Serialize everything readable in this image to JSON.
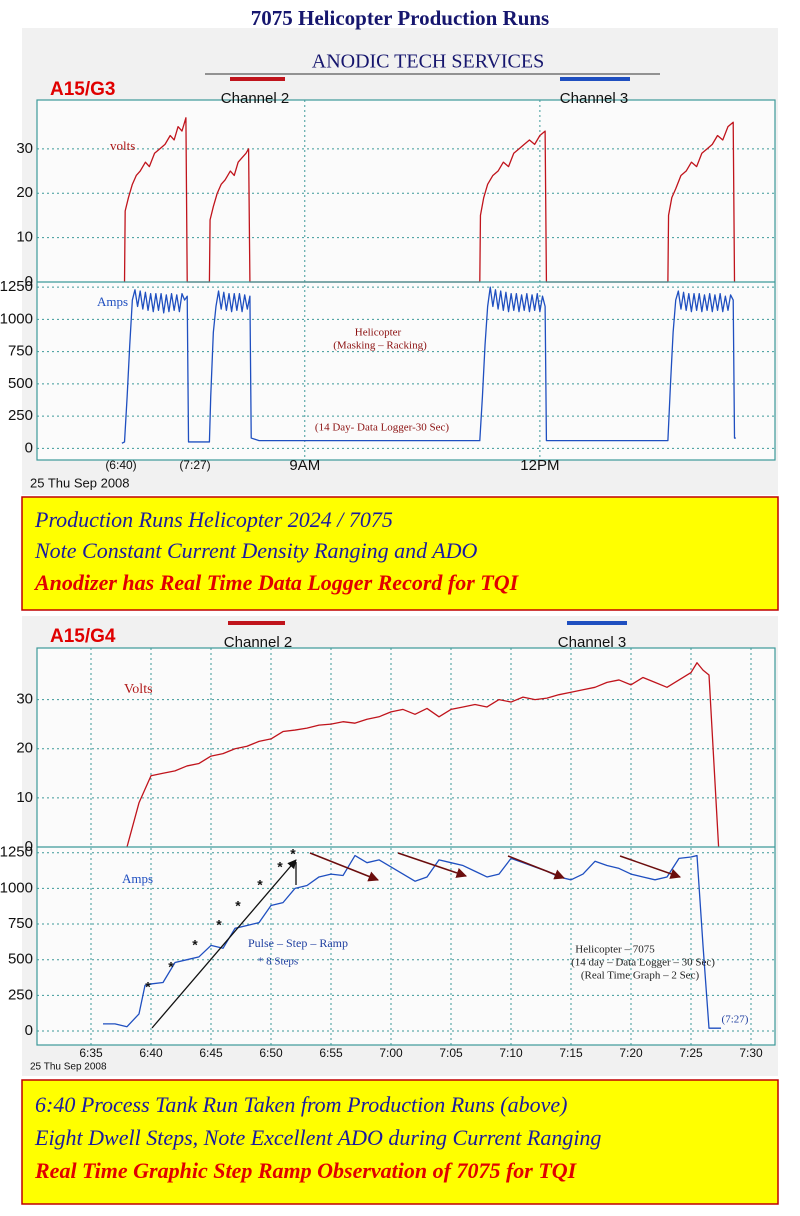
{
  "title": "7075 Helicopter Production Runs",
  "chart_data": [
    {
      "type": "line",
      "header": "ANODIC TECH SERVICES",
      "label": "A15/G3",
      "date": "25 Thu Sep 2008",
      "xlim": [
        335,
        900
      ],
      "xticks": [
        {
          "value": 540,
          "label": "9AM"
        },
        {
          "value": 720,
          "label": "12PM"
        }
      ],
      "grid": true,
      "annotations": [
        "volts",
        "Amps",
        "Helicopter",
        "(Masking – Racking)",
        "(14 Day- Data Logger-30 Sec)",
        "(6:40)",
        "(7:27)"
      ],
      "panels": [
        {
          "ylim": [
            0,
            41
          ],
          "yticks": [
            0,
            10,
            20,
            30
          ],
          "series": [
            {
              "name": "Channel 2",
              "color": "#c0141c",
              "x": [
                402,
                402.5,
                405,
                408,
                411,
                414,
                418,
                421,
                425,
                429,
                433,
                437,
                440,
                443,
                446,
                449,
                450,
                467,
                467.5,
                470,
                473,
                476,
                479,
                483,
                486,
                489,
                492,
                495,
                497,
                498,
                674,
                674.5,
                677,
                680,
                684,
                688,
                692,
                696,
                700,
                704,
                708,
                712,
                716,
                720,
                724,
                725,
                818,
                818.5,
                821,
                824,
                828,
                832,
                836,
                840,
                844,
                848,
                852,
                856,
                860,
                864,
                868,
                869
              ],
              "values": [
                0,
                16,
                19,
                22,
                24,
                25,
                27,
                26,
                29,
                30,
                31,
                33,
                32,
                35,
                34,
                37,
                0,
                0,
                14,
                17,
                20,
                22,
                23,
                25,
                24,
                27,
                28,
                29,
                30,
                0,
                0,
                15,
                19,
                22,
                24,
                25,
                27,
                26,
                29,
                30,
                31,
                32,
                31,
                33,
                34,
                0,
                0,
                15,
                19,
                21,
                24,
                25,
                27,
                26,
                29,
                30,
                31,
                33,
                32,
                35,
                36,
                0
              ]
            }
          ]
        },
        {
          "ylim": [
            -90,
            1290
          ],
          "yticks": [
            0,
            250,
            500,
            750,
            1000,
            1250
          ],
          "series": [
            {
              "name": "Channel 3",
              "color": "#1f4fc0",
              "x": [
                400,
                402,
                404,
                406,
                408,
                410,
                412,
                414,
                416,
                418,
                420,
                422,
                424,
                426,
                428,
                430,
                432,
                434,
                436,
                438,
                440,
                442,
                444,
                446,
                448,
                450,
                451,
                467,
                468,
                470,
                472,
                474,
                476,
                478,
                480,
                482,
                484,
                486,
                488,
                490,
                492,
                494,
                496,
                498,
                499,
                505,
                674,
                676,
                678,
                680,
                682,
                684,
                686,
                688,
                690,
                692,
                694,
                696,
                698,
                700,
                702,
                704,
                706,
                708,
                710,
                712,
                714,
                716,
                718,
                720,
                722,
                724,
                725,
                818,
                820,
                822,
                824,
                826,
                828,
                830,
                832,
                834,
                836,
                838,
                840,
                842,
                844,
                846,
                848,
                850,
                852,
                854,
                856,
                858,
                860,
                862,
                864,
                866,
                868,
                869,
                870
              ],
              "values": [
                40,
                50,
                400,
                800,
                1150,
                1230,
                1100,
                1220,
                1080,
                1210,
                1070,
                1200,
                1060,
                1200,
                1070,
                1200,
                1050,
                1190,
                1060,
                1200,
                1070,
                1190,
                1060,
                1200,
                1150,
                1180,
                50,
                50,
                400,
                900,
                1100,
                1220,
                1080,
                1210,
                1070,
                1200,
                1060,
                1200,
                1070,
                1200,
                1060,
                1190,
                1080,
                1180,
                80,
                60,
                60,
                400,
                800,
                1100,
                1250,
                1100,
                1230,
                1080,
                1220,
                1070,
                1210,
                1060,
                1200,
                1070,
                1200,
                1060,
                1190,
                1070,
                1200,
                1060,
                1190,
                1070,
                1200,
                1060,
                1180,
                1100,
                60,
                60,
                500,
                900,
                1150,
                1220,
                1080,
                1210,
                1070,
                1200,
                1060,
                1200,
                1070,
                1200,
                1060,
                1190,
                1070,
                1200,
                1060,
                1190,
                1070,
                1200,
                1060,
                1180,
                1070,
                1190,
                1150,
                80,
                80
              ]
            }
          ]
        }
      ]
    },
    {
      "type": "line",
      "label": "A15/G4",
      "date": "25 Thu Sep 2008",
      "xlim": [
        390.5,
        452
      ],
      "xticks": [
        {
          "value": 395,
          "label": "6:35"
        },
        {
          "value": 400,
          "label": "6:40"
        },
        {
          "value": 405,
          "label": "6:45"
        },
        {
          "value": 410,
          "label": "6:50"
        },
        {
          "value": 415,
          "label": "6:55"
        },
        {
          "value": 420,
          "label": "7:00"
        },
        {
          "value": 425,
          "label": "7:05"
        },
        {
          "value": 430,
          "label": "7:10"
        },
        {
          "value": 435,
          "label": "7:15"
        },
        {
          "value": 440,
          "label": "7:20"
        },
        {
          "value": 445,
          "label": "7:25"
        },
        {
          "value": 450,
          "label": "7:30"
        }
      ],
      "grid": true,
      "annotations": [
        "Volts",
        "Amps",
        "Pulse – Step – Ramp",
        "* 8 Steps",
        "Helicopter – 7075",
        "(14 day – Data Logger – 30 Sec)",
        "(Real Time Graph – 2 Sec)",
        "(7:27)"
      ],
      "panels": [
        {
          "ylim": [
            0,
            40.5
          ],
          "yticks": [
            0,
            10,
            20,
            30
          ],
          "series": [
            {
              "name": "Channel 2",
              "color": "#c0141c",
              "x": [
                398,
                399,
                400,
                401,
                402,
                403,
                404,
                405,
                406,
                407,
                408,
                409,
                410,
                411,
                412,
                413,
                414,
                415,
                416,
                417,
                418,
                419,
                420,
                421,
                422,
                423,
                424,
                425,
                426,
                427,
                428,
                429,
                430,
                431,
                432,
                433,
                434,
                435,
                436,
                437,
                438,
                439,
                440,
                441,
                442,
                443,
                444,
                445,
                445.5,
                446,
                446.5,
                447.3
              ],
              "values": [
                0,
                9,
                14.5,
                15,
                15.5,
                16.5,
                17,
                18.5,
                19,
                20,
                20.5,
                21.5,
                22,
                23.5,
                23.8,
                24.2,
                24.8,
                25,
                25.5,
                25.2,
                26,
                26.5,
                27.5,
                28,
                27,
                28.2,
                26.5,
                28,
                28.5,
                29,
                28.5,
                30,
                29.5,
                30.5,
                30,
                30.3,
                31,
                31.5,
                32,
                32.5,
                33.5,
                34,
                33,
                34.5,
                33.5,
                32.5,
                34,
                35.5,
                37.5,
                36,
                35,
                0
              ]
            }
          ]
        },
        {
          "ylim": [
            -98,
            1290
          ],
          "yticks": [
            0,
            250,
            500,
            750,
            1000,
            1250
          ],
          "series": [
            {
              "name": "Channel 3",
              "color": "#1f4fc0",
              "x": [
                396,
                397,
                398,
                399,
                399.5,
                400,
                401,
                402,
                403,
                404,
                405,
                406,
                407,
                408,
                409,
                410,
                411,
                412,
                413,
                414,
                415,
                416,
                417,
                418,
                419,
                420,
                421,
                422,
                423,
                424,
                425,
                426,
                427,
                428,
                429,
                430,
                431,
                432,
                433,
                434,
                435,
                436,
                437,
                438,
                439,
                440,
                441,
                442,
                443,
                444,
                445,
                445.5,
                446,
                446.5,
                447,
                447.5
              ],
              "values": [
                50,
                50,
                30,
                120,
                320,
                330,
                340,
                480,
                500,
                520,
                600,
                580,
                720,
                740,
                760,
                880,
                900,
                1000,
                1020,
                1080,
                1100,
                1090,
                1230,
                1180,
                1200,
                1150,
                1100,
                1050,
                1080,
                1200,
                1180,
                1160,
                1120,
                1080,
                1100,
                1210,
                1180,
                1150,
                1120,
                1080,
                1060,
                1100,
                1190,
                1160,
                1140,
                1100,
                1080,
                1060,
                1080,
                1210,
                1220,
                1230,
                600,
                20,
                20,
                20
              ]
            }
          ]
        }
      ]
    }
  ],
  "notes": [
    {
      "lines": [
        "Production Runs Helicopter 2024 / 7075",
        "Note Constant Current Density Ranging and ADO",
        "Anodizer has Real Time Data Logger Record for TQI"
      ]
    },
    {
      "lines": [
        "6:40 Process Tank Run Taken from Production Runs (above)",
        "Eight Dwell Steps, Note Excellent ADO during Current Ranging",
        "Real Time Graphic Step Ramp Observation of 7075 for TQI"
      ]
    }
  ]
}
